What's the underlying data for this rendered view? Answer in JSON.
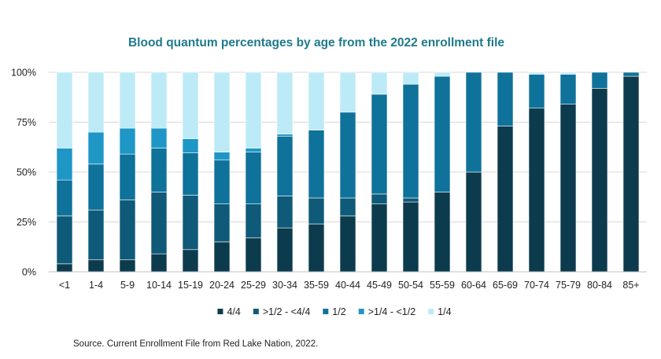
{
  "chart_data": {
    "type": "bar",
    "stacked": true,
    "title": "Blood quantum percentages by age from the 2022 enrollment file",
    "xlabel": "",
    "ylabel": "",
    "ylim": [
      0,
      100
    ],
    "yticks": [
      "0%",
      "25%",
      "50%",
      "75%",
      "100%"
    ],
    "grid": true,
    "legend_position": "bottom",
    "categories": [
      "<1",
      "1-4",
      "5-9",
      "10-14",
      "15-19",
      "20-24",
      "25-29",
      "30-34",
      "35-59",
      "40-44",
      "45-49",
      "50-54",
      "55-59",
      "60-64",
      "65-69",
      "70-74",
      "75-79",
      "80-84",
      "85+"
    ],
    "series": [
      {
        "name": "4/4",
        "color": "#0d3b4e",
        "values": [
          4,
          6,
          6,
          9,
          11,
          15,
          17,
          22,
          24,
          28,
          34,
          35,
          40,
          50,
          73,
          82,
          84,
          92,
          98
        ]
      },
      {
        "name": ">1/2 - <4/4",
        "color": "#0f5a78",
        "values": [
          24,
          25,
          30,
          31,
          27,
          19,
          17,
          16,
          13,
          9,
          5,
          2,
          0,
          0,
          0,
          0,
          0,
          0,
          0
        ]
      },
      {
        "name": "1/2",
        "color": "#0f729a",
        "values": [
          18,
          23,
          23,
          22,
          21,
          22,
          26,
          30,
          34,
          43,
          50,
          57,
          58,
          50,
          27,
          17,
          15,
          8,
          2
        ]
      },
      {
        "name": ">1/4 - <1/2",
        "color": "#1f97c6",
        "values": [
          16,
          16,
          13,
          10,
          7,
          4,
          2,
          1,
          0,
          0,
          0,
          0,
          0,
          0,
          0,
          0,
          0,
          0,
          0
        ]
      },
      {
        "name": "1/4",
        "color": "#bdeaf7",
        "values": [
          38,
          30,
          28,
          28,
          33,
          40,
          38,
          31,
          29,
          20,
          11,
          6,
          2,
          0,
          0,
          1,
          1,
          0,
          0
        ]
      }
    ]
  },
  "source_note": "Source. Current Enrollment  File from Red Lake Nation,  2022."
}
